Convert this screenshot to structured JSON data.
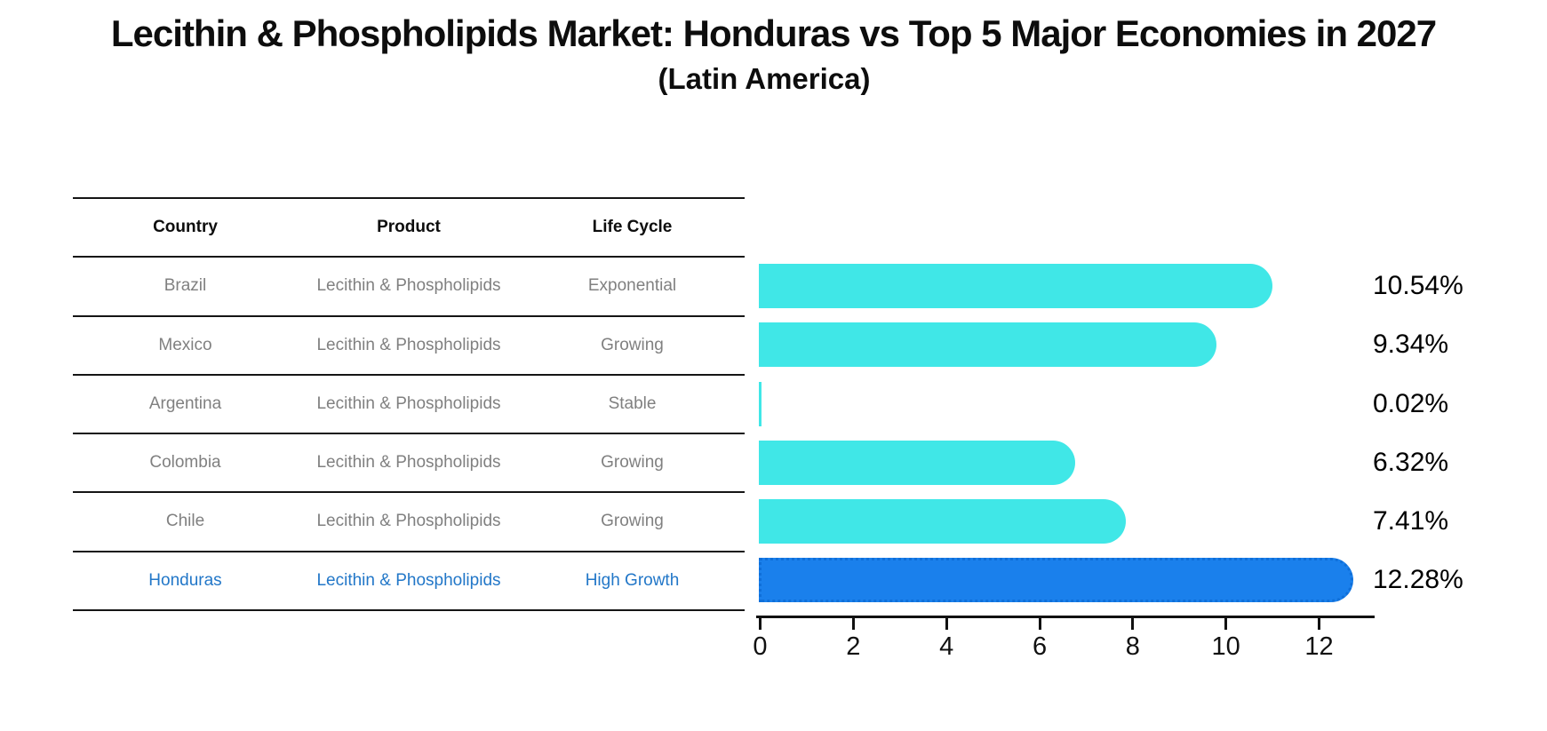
{
  "title": "Lecithin & Phospholipids Market: Honduras vs Top 5 Major Economies in 2027",
  "subtitle": "(Latin America)",
  "table": {
    "headers": [
      "Country",
      "Product",
      "Life Cycle"
    ],
    "rows": [
      {
        "country": "Brazil",
        "product": "Lecithin & Phospholipids",
        "life_cycle": "Exponential",
        "highlight": false
      },
      {
        "country": "Mexico",
        "product": "Lecithin & Phospholipids",
        "life_cycle": "Growing",
        "highlight": false
      },
      {
        "country": "Argentina",
        "product": "Lecithin & Phospholipids",
        "life_cycle": "Stable",
        "highlight": false
      },
      {
        "country": "Colombia",
        "product": "Lecithin & Phospholipids",
        "life_cycle": "Growing",
        "highlight": false
      },
      {
        "country": "Chile",
        "product": "Lecithin & Phospholipids",
        "life_cycle": "Growing",
        "highlight": false
      },
      {
        "country": "Honduras",
        "product": "Lecithin & Phospholipids",
        "life_cycle": "High Growth",
        "highlight": true
      }
    ]
  },
  "chart_data": {
    "type": "bar",
    "orientation": "horizontal",
    "categories": [
      "Brazil",
      "Mexico",
      "Argentina",
      "Colombia",
      "Chile",
      "Honduras"
    ],
    "values": [
      10.54,
      9.34,
      0.02,
      6.32,
      7.41,
      12.28
    ],
    "value_labels": [
      "10.54%",
      "9.34%",
      "0.02%",
      "6.32%",
      "7.41%",
      "12.28%"
    ],
    "highlight_index": 5,
    "xlim": [
      0,
      13.2
    ],
    "xticks": [
      0,
      2,
      4,
      6,
      8,
      10,
      12
    ],
    "grid": false,
    "legend": "none",
    "bar_color": "#40E7E7",
    "highlight_color": "#1A80EC",
    "highlight_text_color": "#2277C8",
    "label_color": "#000000"
  }
}
